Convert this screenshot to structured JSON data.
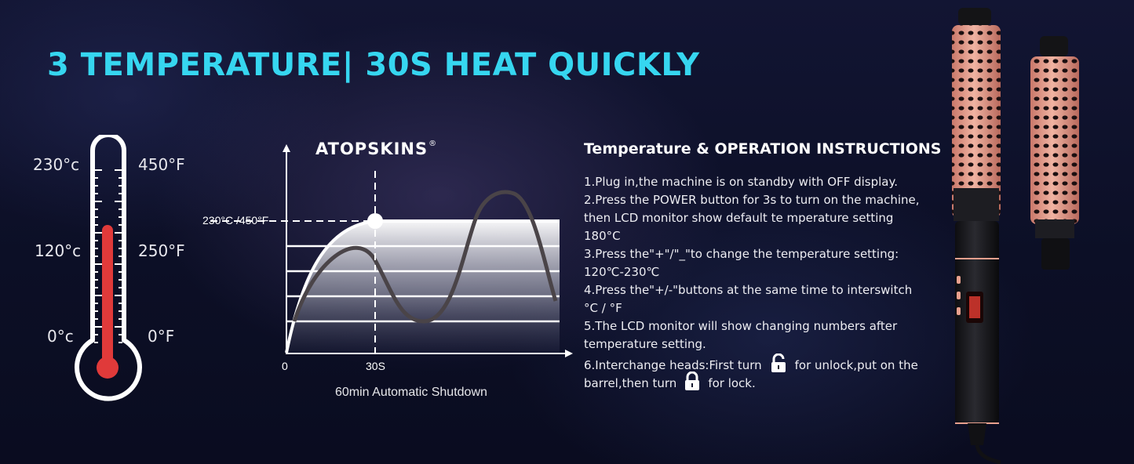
{
  "headline": "3 TEMPERATURE| 30S HEAT QUICKLY",
  "thermometer": {
    "celsius": [
      "230°c",
      "120°c",
      "0°c"
    ],
    "fahrenheit": [
      "450°F",
      "250°F",
      "0°F"
    ]
  },
  "heat_chart": {
    "brand": "ATOPSKINS",
    "brand_mark": "®",
    "temp_label": "230°C /450°F",
    "x_start": "0",
    "x_mark": "30S",
    "caption": "60min Automatic Shutdown"
  },
  "instructions": {
    "title": "Temperature & OPERATION INSTRUCTIONS",
    "lines": [
      "1.Plug in,the machine is on standby with OFF display.",
      "2.Press the POWER button for 3s to turn on the machine,",
      "then LCD monitor show default te mperature setting",
      "180°C",
      "3.Press the\"+\"/\"_\"to change the temperature setting:",
      "120℃-230℃",
      "4.Press the\"+/-\"buttons at the same time to interswitch",
      "°C / °F",
      "5.The LCD monitor will show changing numbers after",
      "temperature setting.",
      "6.Interchange heads:First turn",
      "for unlock,put on the",
      "barrel,then turn",
      "for lock."
    ]
  },
  "colors": {
    "headline": "#36d6f0",
    "thermometer_fill": "#e03a3a",
    "barrel": "#e8a08e"
  },
  "icons": [
    "unlock-icon",
    "lock-icon"
  ]
}
